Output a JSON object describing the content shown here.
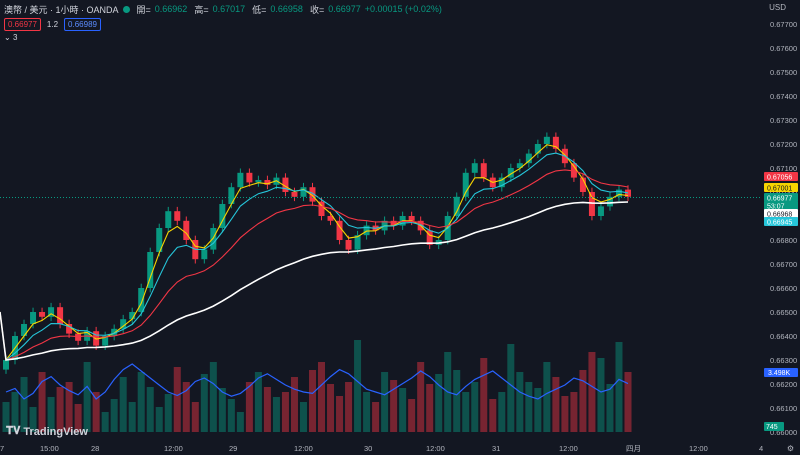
{
  "header": {
    "symbol": "澳幣 / 美元 · 1小時 · OANDA",
    "open_label": "開=",
    "open": "0.66962",
    "high_label": "高=",
    "high": "0.67017",
    "low_label": "低=",
    "low": "0.66958",
    "close_label": "收=",
    "close": "0.66977",
    "change": "+0.00015 (+0.02%)"
  },
  "bid_ask": {
    "sell": "0.66977",
    "spread": "1.2",
    "buy": "0.66989"
  },
  "indicator_toggle": "3",
  "currency": "USD",
  "logo_text": "TradingView",
  "y_axis_ticks": [
    "0.67700",
    "0.67600",
    "0.67500",
    "0.67400",
    "0.67300",
    "0.67200",
    "0.67100",
    "0.67000",
    "0.66900",
    "0.66800",
    "0.66700",
    "0.66600",
    "0.66500",
    "0.66400",
    "0.66300",
    "0.66200",
    "0.66100",
    "0.66000"
  ],
  "x_axis_ticks": [
    "7",
    "15:00",
    "28",
    "12:00",
    "29",
    "12:00",
    "30",
    "12:00",
    "31",
    "12:00",
    "四月",
    "12:00",
    "4"
  ],
  "price_labels": [
    {
      "text": "0.67056",
      "color": "#f23645"
    },
    {
      "text": "0.67001",
      "color": "#f7d400"
    },
    {
      "text": "0.66977",
      "color": "#089981"
    },
    {
      "text": "53:07",
      "color": "#089981"
    },
    {
      "text": "0.66968",
      "color": "#ffffff"
    },
    {
      "text": "0.66945",
      "color": "#26c6da"
    }
  ],
  "osc_label": "3.498K",
  "vol_label": "745",
  "colors": {
    "up": "#089981",
    "down": "#f23645",
    "ema_fast": "#f7d400",
    "ema_mid": "#26c6da",
    "ema_slow": "#f23645",
    "ema_long": "#ffffff",
    "osc": "#2962ff",
    "background": "#131722"
  },
  "chart_data": {
    "type": "candlestick",
    "note_series": [
      "price candles",
      "EMA fast",
      "EMA mid",
      "EMA slow",
      "EMA long",
      "volume",
      "oscillator"
    ],
    "closes": [
      0.663,
      0.664,
      0.6645,
      0.665,
      0.6648,
      0.6652,
      0.6645,
      0.6641,
      0.6638,
      0.6642,
      0.6636,
      0.664,
      0.6643,
      0.6647,
      0.665,
      0.666,
      0.6675,
      0.6685,
      0.6692,
      0.6688,
      0.668,
      0.6672,
      0.6676,
      0.6685,
      0.6695,
      0.6702,
      0.6708,
      0.6704,
      0.6705,
      0.6703,
      0.6706,
      0.67,
      0.6698,
      0.6702,
      0.6696,
      0.669,
      0.6688,
      0.668,
      0.6676,
      0.6682,
      0.6686,
      0.6684,
      0.6688,
      0.6686,
      0.669,
      0.6688,
      0.6684,
      0.6678,
      0.668,
      0.669,
      0.6698,
      0.6708,
      0.6712,
      0.6706,
      0.6702,
      0.6706,
      0.671,
      0.6712,
      0.6716,
      0.672,
      0.6723,
      0.6718,
      0.6712,
      0.6706,
      0.67,
      0.669,
      0.6694,
      0.6698,
      0.6701,
      0.6698
    ]
  }
}
